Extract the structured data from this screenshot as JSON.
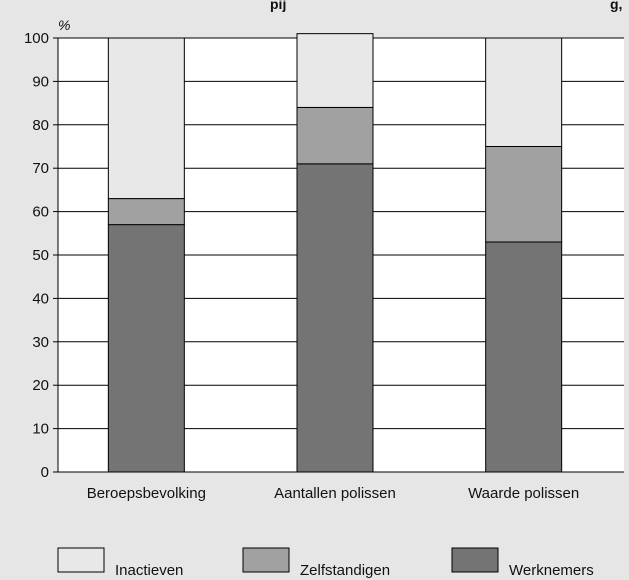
{
  "chart_data": {
    "type": "bar",
    "stacked": true,
    "title": "pij",
    "title_right": "g,",
    "ylabel": "%",
    "ylim": [
      0,
      100
    ],
    "yticks": [
      0,
      10,
      20,
      30,
      40,
      50,
      60,
      70,
      80,
      90,
      100
    ],
    "grid": true,
    "legend_position": "bottom",
    "categories": [
      "Beroepsbevolking",
      "Aantallen polissen",
      "Waarde polissen"
    ],
    "series": [
      {
        "name": "Werknemers",
        "values": [
          57,
          71,
          53
        ],
        "color": "#747474"
      },
      {
        "name": "Zelfstandigen",
        "values": [
          6,
          13,
          22
        ],
        "color": "#a1a1a1"
      },
      {
        "name": "Inactieven",
        "values": [
          37,
          17,
          25
        ],
        "color": "#e8e8e8"
      }
    ],
    "legend_order": [
      "Inactieven",
      "Zelfstandigen",
      "Werknemers"
    ],
    "colors": {
      "background": "#e6e6e6",
      "plot_background": "#ffffff",
      "axis": "#000000"
    }
  }
}
